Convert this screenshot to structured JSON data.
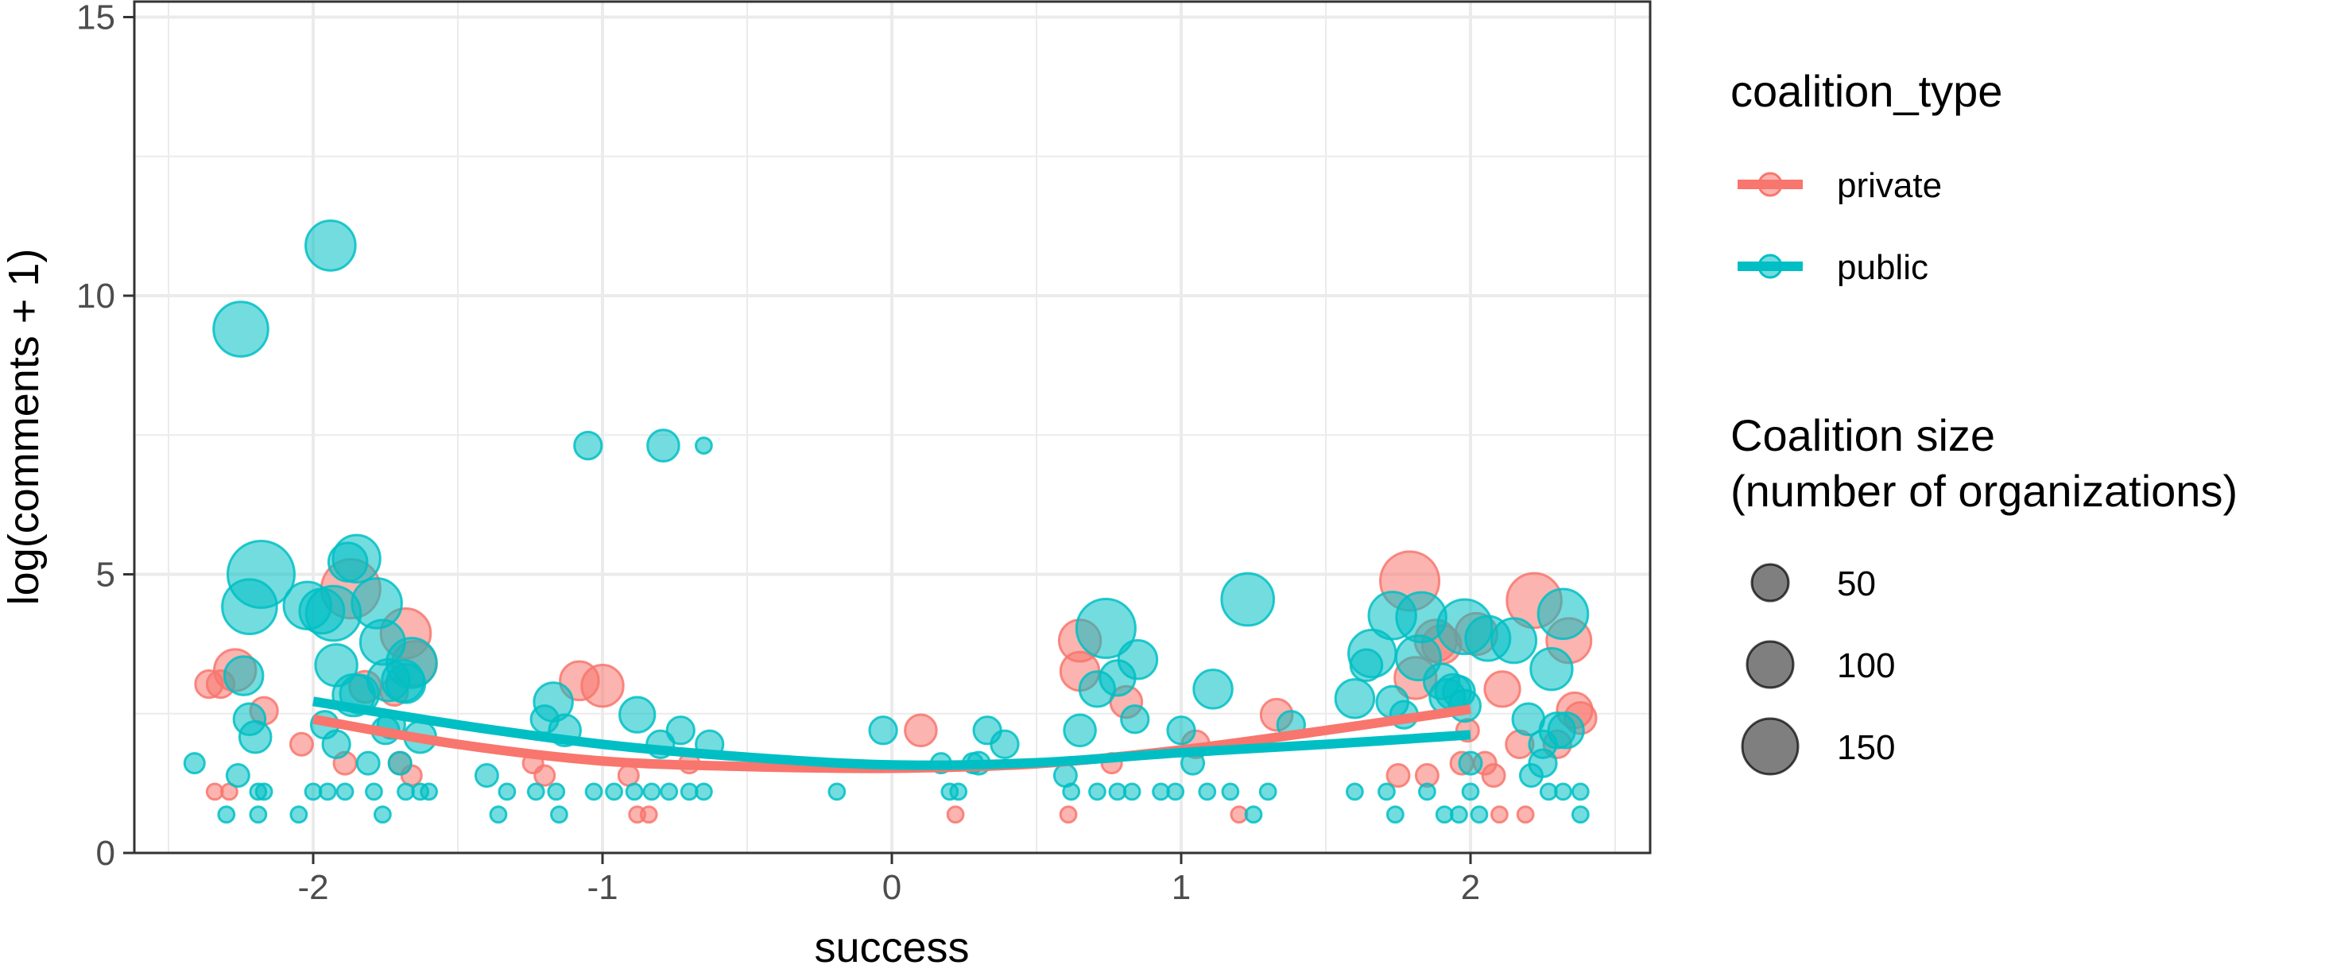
{
  "chart_data": {
    "type": "scatter",
    "title": "",
    "xlabel": "success",
    "ylabel": "log(comments + 1)",
    "xlim": [
      -2.5,
      2.5
    ],
    "ylim": [
      0,
      15
    ],
    "x_ticks": [
      -2,
      -1,
      0,
      1,
      2
    ],
    "x_tick_labels": [
      "-2",
      "-1",
      "0",
      "1",
      "2"
    ],
    "y_ticks": [
      0,
      5,
      10,
      15
    ],
    "y_tick_labels": [
      "0",
      "5",
      "10",
      "15"
    ],
    "grid": true,
    "legend_position": "right",
    "colors": {
      "private": "#F8766D",
      "public": "#00BFC4"
    },
    "legend": {
      "color_title": "coalition_type",
      "color_entries": [
        "private",
        "public"
      ],
      "size_title_lines": [
        "Coalition size",
        "(number of organizations)"
      ],
      "size_entries": [
        {
          "label": "50",
          "value": 50
        },
        {
          "label": "100",
          "value": 100
        },
        {
          "label": "150",
          "value": 150
        }
      ]
    },
    "series": [
      {
        "name": "private",
        "points": [
          [
            -2.36,
            3.03,
            15
          ],
          [
            -2.32,
            3.03,
            15
          ],
          [
            -2.27,
            3.28,
            35
          ],
          [
            -2.17,
            2.55,
            15
          ],
          [
            -2.04,
            1.95,
            10
          ],
          [
            -1.87,
            4.74,
            70
          ],
          [
            -1.82,
            2.98,
            20
          ],
          [
            -1.72,
            2.89,
            15
          ],
          [
            -1.68,
            3.94,
            50
          ],
          [
            -1.65,
            3.4,
            40
          ],
          [
            -1.7,
            1.61,
            10
          ],
          [
            -1.66,
            1.39,
            8
          ],
          [
            -1.89,
            1.61,
            10
          ],
          [
            -2.34,
            1.1,
            5
          ],
          [
            -2.29,
            1.1,
            5
          ],
          [
            -1.08,
            3.09,
            30
          ],
          [
            -1.0,
            3.0,
            35
          ],
          [
            -1.24,
            1.61,
            8
          ],
          [
            -1.2,
            1.39,
            8
          ],
          [
            -0.91,
            1.39,
            8
          ],
          [
            -0.88,
            0.69,
            5
          ],
          [
            -0.84,
            0.69,
            5
          ],
          [
            -0.7,
            1.61,
            8
          ],
          [
            0.1,
            2.2,
            20
          ],
          [
            0.22,
            0.69,
            5
          ],
          [
            0.65,
            3.81,
            35
          ],
          [
            0.65,
            3.26,
            30
          ],
          [
            0.81,
            2.71,
            20
          ],
          [
            0.76,
            1.61,
            8
          ],
          [
            0.61,
            0.69,
            5
          ],
          [
            1.05,
            1.95,
            15
          ],
          [
            1.33,
            2.48,
            20
          ],
          [
            1.2,
            0.69,
            5
          ],
          [
            1.79,
            4.88,
            70
          ],
          [
            1.81,
            3.14,
            35
          ],
          [
            1.88,
            3.81,
            35
          ],
          [
            1.9,
            3.74,
            30
          ],
          [
            1.75,
            1.39,
            10
          ],
          [
            1.85,
            1.39,
            10
          ],
          [
            1.97,
            1.61,
            10
          ],
          [
            1.99,
            2.2,
            10
          ],
          [
            2.02,
            3.93,
            35
          ],
          [
            2.11,
            2.94,
            25
          ],
          [
            2.22,
            4.53,
            60
          ],
          [
            2.34,
            3.81,
            40
          ],
          [
            2.36,
            2.56,
            25
          ],
          [
            2.38,
            2.42,
            20
          ],
          [
            2.17,
            1.95,
            15
          ],
          [
            2.3,
            1.95,
            15
          ],
          [
            2.05,
            1.61,
            10
          ],
          [
            2.08,
            1.39,
            10
          ],
          [
            2.1,
            0.69,
            5
          ],
          [
            2.19,
            0.69,
            5
          ]
        ],
        "smooth": [
          [
            -2.0,
            2.4
          ],
          [
            -1.5,
            1.95
          ],
          [
            -1.0,
            1.65
          ],
          [
            -0.5,
            1.55
          ],
          [
            0.0,
            1.52
          ],
          [
            0.5,
            1.6
          ],
          [
            1.0,
            1.85
          ],
          [
            1.5,
            2.2
          ],
          [
            2.0,
            2.58
          ]
        ]
      },
      {
        "name": "public",
        "points": [
          [
            -2.41,
            1.61,
            8
          ],
          [
            -2.24,
            3.18,
            30
          ],
          [
            -2.25,
            9.4,
            60
          ],
          [
            -2.22,
            2.4,
            20
          ],
          [
            -2.2,
            2.08,
            20
          ],
          [
            -2.22,
            4.42,
            60
          ],
          [
            -2.18,
            5.0,
            90
          ],
          [
            -2.02,
            4.44,
            45
          ],
          [
            -1.97,
            4.34,
            40
          ],
          [
            -1.93,
            4.3,
            60
          ],
          [
            -1.94,
            10.9,
            50
          ],
          [
            -1.92,
            3.37,
            35
          ],
          [
            -1.88,
            5.22,
            30
          ],
          [
            -1.85,
            5.28,
            45
          ],
          [
            -1.86,
            2.83,
            35
          ],
          [
            -1.84,
            2.85,
            30
          ],
          [
            -1.78,
            4.48,
            50
          ],
          [
            -1.76,
            3.78,
            40
          ],
          [
            -1.74,
            3.1,
            35
          ],
          [
            -1.69,
            3.09,
            35
          ],
          [
            -1.68,
            3.04,
            30
          ],
          [
            -1.66,
            3.41,
            50
          ],
          [
            -1.75,
            2.2,
            15
          ],
          [
            -1.73,
            2.3,
            15
          ],
          [
            -1.63,
            2.08,
            20
          ],
          [
            -1.92,
            1.95,
            15
          ],
          [
            -1.96,
            2.3,
            15
          ],
          [
            -2.26,
            1.39,
            10
          ],
          [
            -2.19,
            1.1,
            5
          ],
          [
            -2.17,
            1.1,
            5
          ],
          [
            -2.3,
            0.69,
            5
          ],
          [
            -2.19,
            0.69,
            5
          ],
          [
            -2.05,
            0.69,
            5
          ],
          [
            -1.76,
            0.69,
            5
          ],
          [
            -1.6,
            1.1,
            5
          ],
          [
            -2.0,
            1.1,
            5
          ],
          [
            -1.95,
            1.1,
            5
          ],
          [
            -1.89,
            1.1,
            5
          ],
          [
            -1.79,
            1.1,
            5
          ],
          [
            -1.68,
            1.1,
            5
          ],
          [
            -1.63,
            1.1,
            5
          ],
          [
            -1.81,
            1.61,
            10
          ],
          [
            -1.7,
            1.61,
            10
          ],
          [
            -1.17,
            2.71,
            30
          ],
          [
            -1.13,
            2.2,
            20
          ],
          [
            -1.2,
            2.4,
            15
          ],
          [
            -0.88,
            2.48,
            25
          ],
          [
            -0.73,
            2.2,
            15
          ],
          [
            -1.4,
            1.39,
            10
          ],
          [
            -1.33,
            1.1,
            5
          ],
          [
            -1.23,
            1.1,
            5
          ],
          [
            -1.16,
            1.1,
            5
          ],
          [
            -1.03,
            1.1,
            5
          ],
          [
            -0.96,
            1.1,
            5
          ],
          [
            -0.89,
            1.1,
            5
          ],
          [
            -0.83,
            1.1,
            5
          ],
          [
            -0.77,
            1.1,
            5
          ],
          [
            -0.7,
            1.1,
            5
          ],
          [
            -0.65,
            1.1,
            5
          ],
          [
            -1.36,
            0.69,
            5
          ],
          [
            -1.15,
            0.69,
            5
          ],
          [
            -0.8,
            1.95,
            15
          ],
          [
            -0.63,
            1.95,
            15
          ],
          [
            -1.05,
            7.31,
            15
          ],
          [
            -0.79,
            7.31,
            20
          ],
          [
            -0.65,
            7.31,
            5
          ],
          [
            -0.03,
            2.2,
            15
          ],
          [
            -0.19,
            1.1,
            5
          ],
          [
            0.17,
            1.61,
            8
          ],
          [
            0.28,
            1.61,
            8
          ],
          [
            0.33,
            2.2,
            15
          ],
          [
            0.39,
            1.95,
            15
          ],
          [
            0.2,
            1.1,
            5
          ],
          [
            0.23,
            1.1,
            5
          ],
          [
            0.3,
            1.61,
            10
          ],
          [
            0.6,
            1.39,
            10
          ],
          [
            0.65,
            2.2,
            20
          ],
          [
            0.71,
            2.94,
            25
          ],
          [
            0.74,
            4.03,
            70
          ],
          [
            0.78,
            3.14,
            25
          ],
          [
            0.85,
            3.47,
            30
          ],
          [
            0.84,
            2.4,
            15
          ],
          [
            0.62,
            1.1,
            5
          ],
          [
            0.71,
            1.1,
            5
          ],
          [
            0.78,
            1.1,
            5
          ],
          [
            0.83,
            1.1,
            5
          ],
          [
            0.93,
            1.1,
            5
          ],
          [
            1.0,
            2.2,
            15
          ],
          [
            1.04,
            1.61,
            10
          ],
          [
            1.09,
            1.1,
            5
          ],
          [
            1.11,
            2.94,
            30
          ],
          [
            1.17,
            1.1,
            5
          ],
          [
            1.23,
            4.55,
            55
          ],
          [
            1.25,
            0.69,
            5
          ],
          [
            1.38,
            2.3,
            15
          ],
          [
            1.3,
            1.1,
            5
          ],
          [
            0.98,
            1.1,
            5
          ],
          [
            1.6,
            2.77,
            30
          ],
          [
            1.64,
            3.37,
            20
          ],
          [
            1.66,
            3.58,
            45
          ],
          [
            1.73,
            4.26,
            45
          ],
          [
            1.77,
            2.48,
            15
          ],
          [
            1.73,
            2.71,
            20
          ],
          [
            1.83,
            4.23,
            50
          ],
          [
            1.82,
            3.5,
            40
          ],
          [
            1.9,
            3.08,
            25
          ],
          [
            1.92,
            2.8,
            25
          ],
          [
            1.94,
            2.89,
            25
          ],
          [
            1.98,
            4.06,
            60
          ],
          [
            1.98,
            2.64,
            20
          ],
          [
            1.96,
            2.89,
            20
          ],
          [
            2.06,
            3.85,
            40
          ],
          [
            2.15,
            3.81,
            40
          ],
          [
            2.2,
            2.4,
            20
          ],
          [
            2.25,
            1.95,
            15
          ],
          [
            2.3,
            2.2,
            25
          ],
          [
            2.32,
            4.29,
            50
          ],
          [
            2.28,
            3.3,
            35
          ],
          [
            2.33,
            2.2,
            25
          ],
          [
            2.25,
            1.61,
            15
          ],
          [
            2.21,
            1.39,
            10
          ],
          [
            2.0,
            1.61,
            10
          ],
          [
            1.6,
            1.1,
            5
          ],
          [
            1.71,
            1.1,
            5
          ],
          [
            1.74,
            0.69,
            5
          ],
          [
            1.85,
            1.1,
            5
          ],
          [
            1.91,
            0.69,
            5
          ],
          [
            1.96,
            0.69,
            5
          ],
          [
            2.03,
            0.69,
            5
          ],
          [
            2.27,
            1.1,
            5
          ],
          [
            2.32,
            1.1,
            5
          ],
          [
            2.38,
            1.1,
            5
          ],
          [
            2.38,
            0.69,
            5
          ],
          [
            2.0,
            1.1,
            5
          ]
        ],
        "smooth": [
          [
            -2.0,
            2.72
          ],
          [
            -1.5,
            2.3
          ],
          [
            -1.0,
            1.95
          ],
          [
            -0.5,
            1.72
          ],
          [
            0.0,
            1.58
          ],
          [
            0.5,
            1.62
          ],
          [
            1.0,
            1.8
          ],
          [
            1.5,
            1.95
          ],
          [
            2.0,
            2.12
          ]
        ]
      }
    ]
  }
}
